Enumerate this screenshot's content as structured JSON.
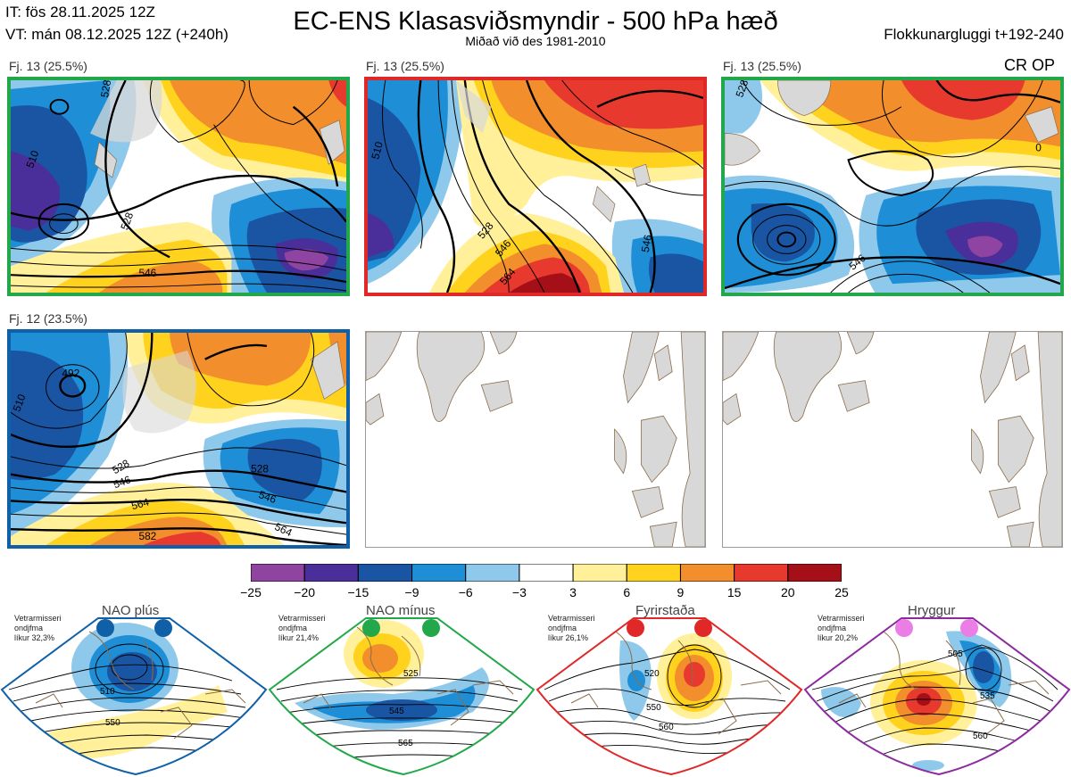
{
  "header": {
    "it": "IT: fös 28.11.2025 12Z",
    "vt": "VT: mán 08.12.2025 12Z  (+240h)",
    "title": "EC-ENS Klasasviðsmyndir - 500 hPa hæð",
    "subtitle": "Miðað við des 1981-2010",
    "window": "Flokkunargluggi t+192-240",
    "cr_op": "CR OP"
  },
  "panels": [
    {
      "label": "Fj. 13 (25.5%)",
      "frame_color": "#22a84a",
      "contours": [
        "528",
        "528",
        "546",
        "510"
      ]
    },
    {
      "label": "Fj. 13 (25.5%)",
      "frame_color": "#e02828",
      "contours": [
        "510",
        "528",
        "546",
        "564",
        "546"
      ]
    },
    {
      "label": "Fj. 13 (25.5%)",
      "frame_color": "#22a84a",
      "contours": [
        "546",
        "0",
        "528"
      ]
    },
    {
      "label": "Fj. 12 (23.5%)",
      "frame_color": "#1060a8",
      "contours": [
        "492",
        "510",
        "528",
        "546",
        "564",
        "582",
        "528",
        "546",
        "564"
      ]
    },
    {
      "label": "",
      "frame_color": "#9a9a9a",
      "contours": []
    },
    {
      "label": "",
      "frame_color": "#9a9a9a",
      "contours": []
    }
  ],
  "colorbar": {
    "ticks": [
      "−25",
      "−20",
      "−15",
      "−9",
      "−6",
      "−3",
      "3",
      "6",
      "9",
      "15",
      "20",
      "25"
    ],
    "colors": [
      "#8e44a0",
      "#4a2f9a",
      "#1a55a3",
      "#1e8fd6",
      "#8ec8ea",
      "#ffffff",
      "#fff099",
      "#ffd21e",
      "#f28e2b",
      "#e8392e",
      "#a51018"
    ]
  },
  "regimes": [
    {
      "name": "NAO plús",
      "stat_lines": [
        "Vetrarmisseri",
        "ondjfma",
        "líkur 32,3%"
      ],
      "color": "#1060a8",
      "contours": [
        "510",
        "550"
      ]
    },
    {
      "name": "NAO mínus",
      "stat_lines": [
        "Vetrarmisseri",
        "ondjfma",
        "líkur 21,4%"
      ],
      "color": "#22a84a",
      "contours": [
        "525",
        "545",
        "565"
      ]
    },
    {
      "name": "Fyrirstaða",
      "stat_lines": [
        "Vetrarmisseri",
        "ondjfma",
        "líkur 26,1%"
      ],
      "color": "#e02828",
      "contours": [
        "520",
        "550",
        "560"
      ]
    },
    {
      "name": "Hryggur",
      "stat_lines": [
        "Vetrarmisseri",
        "ondjfma",
        "líkur 20,2%"
      ],
      "color": "#8c2aa0",
      "contours": [
        "505",
        "535",
        "560"
      ]
    }
  ],
  "colors": {
    "land": "#d8d8d8",
    "coast": "#8b6d4a",
    "contour": "#000000"
  }
}
